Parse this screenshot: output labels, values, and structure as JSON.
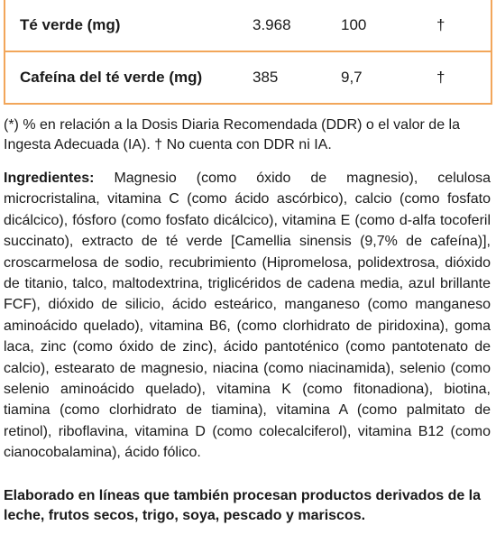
{
  "table": {
    "rows": [
      {
        "name": "Té verde (mg)",
        "amount": "3.968",
        "percent": "100",
        "mark": "†"
      },
      {
        "name": "Cafeína del té verde (mg)",
        "amount": "385",
        "percent": "9,7",
        "mark": "†"
      }
    ]
  },
  "footnote": "(*) % en relación a la Dosis Diaria Recomendada (DDR) o el valor de la Ingesta Adecuada (IA). † No cuenta con DDR ni IA.",
  "ingredients": {
    "label": "Ingredientes:",
    "text": "Magnesio (como óxido de magnesio), celulosa microcristalina, vitamina C (como ácido ascórbico), calcio (como fosfato dicálcico), fósforo (como fosfato dicálcico), vitamina E (como d-alfa tocoferil succinato), extracto de té verde [Camellia sinensis (9,7% de cafeína)], croscarmelosa de sodio, recubrimiento (Hipromelosa, polidextrosa, dióxido de titanio, talco, maltodextrina, triglicéridos de cadena media, azul brillante FCF), dióxido de silicio, ácido esteárico, manganeso (como manganeso aminoácido quelado), vitamina B6, (como clorhidrato de piridoxina), goma laca, zinc (como óxido de zinc), ácido pantoténico (como pantotenato de calcio), estearato de magnesio, niacina (como niacinamida), selenio (como selenio aminoácido quelado), vitamina K (como fitonadiona), biotina, tiamina (como clorhidrato de tiamina), vitamina A (como palmitato de retinol), riboflavina, vitamina D (como colecalciferol), vitamina B12 (como cianocobalamina), ácido fólico."
  },
  "allergen_statement": "Elaborado en líneas que también procesan productos derivados de la leche, frutos secos, trigo, soya, pescado y mariscos.",
  "colors": {
    "table_border": "#f2a65a",
    "text": "#1a1a1a"
  }
}
